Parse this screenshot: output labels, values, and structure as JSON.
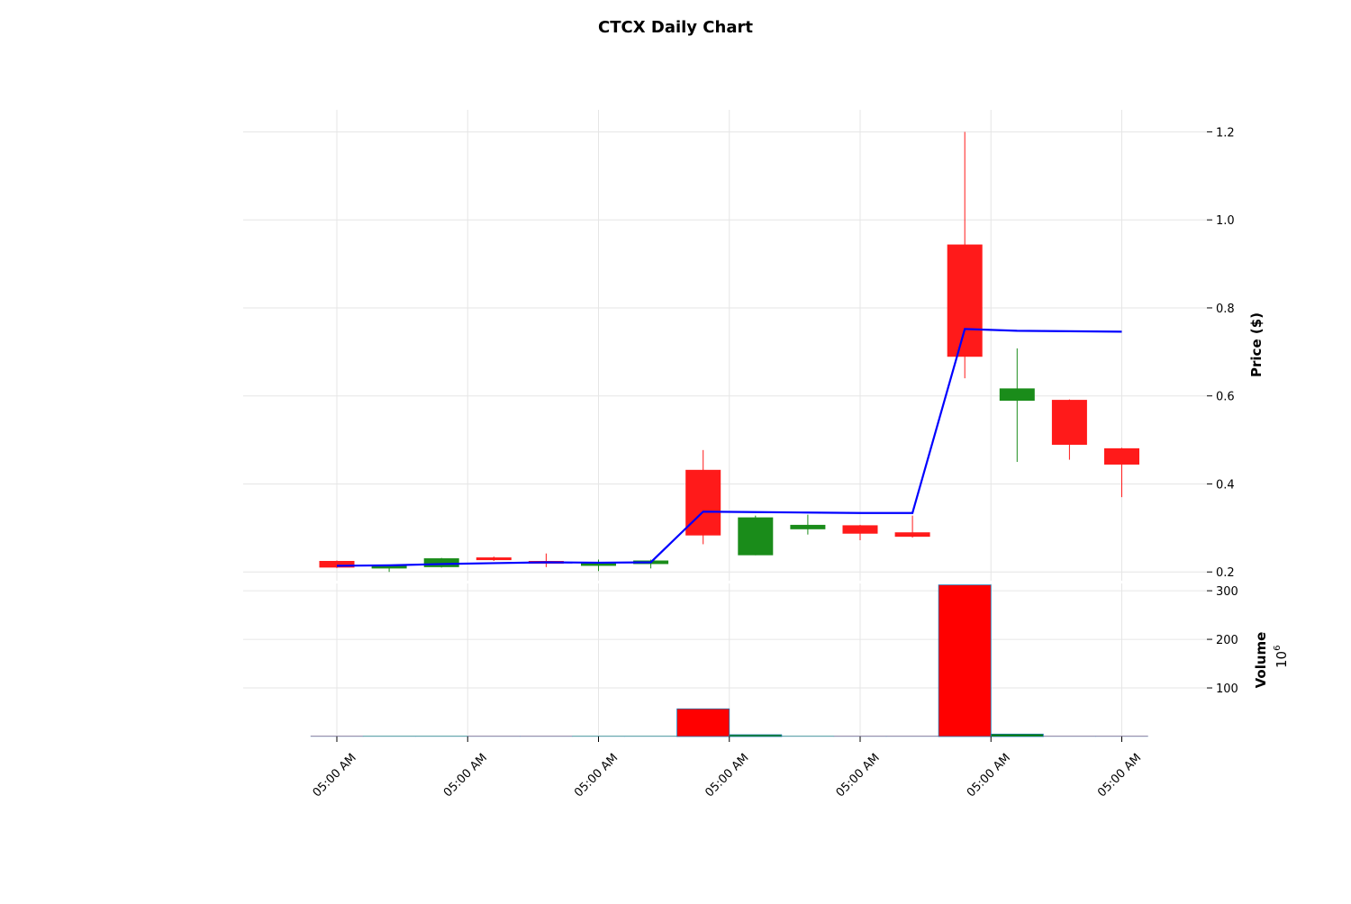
{
  "chart_data": {
    "type": "candlestick",
    "title": "CTCX Daily Chart",
    "price_axis": {
      "label": "Price ($)",
      "ylim": [
        0.18,
        1.25
      ],
      "ticks": [
        "0.2",
        "0.4",
        "0.6",
        "0.8",
        "1.0",
        "1.2"
      ]
    },
    "volume_axis": {
      "label": "Volume",
      "scale_label": "10",
      "scale_exponent": "6",
      "ylim": [
        0,
        315
      ],
      "ticks": [
        "100",
        "200",
        "300"
      ]
    },
    "x_tick_labels": [
      "05:00 AM",
      "05:00 AM",
      "05:00 AM",
      "05:00 AM",
      "05:00 AM",
      "05:00 AM",
      "05:00 AM"
    ],
    "colors": {
      "up": "#1a8c1a",
      "down": "#ff1a1a",
      "volume_up": "#008000",
      "volume_down": "#ff0000",
      "moving_average": "#0000ff"
    },
    "candles": [
      {
        "index": 0,
        "open": 0.224,
        "high": 0.226,
        "low": 0.209,
        "close": 0.211
      },
      {
        "index": 1,
        "open": 0.211,
        "high": 0.214,
        "low": 0.2,
        "close": 0.213
      },
      {
        "index": 2,
        "open": 0.212,
        "high": 0.232,
        "low": 0.21,
        "close": 0.23
      },
      {
        "index": 3,
        "open": 0.232,
        "high": 0.235,
        "low": 0.225,
        "close": 0.229
      },
      {
        "index": 4,
        "open": 0.224,
        "high": 0.242,
        "low": 0.211,
        "close": 0.222
      },
      {
        "index": 5,
        "open": 0.215,
        "high": 0.228,
        "low": 0.202,
        "close": 0.219
      },
      {
        "index": 6,
        "open": 0.219,
        "high": 0.228,
        "low": 0.208,
        "close": 0.225
      },
      {
        "index": 7,
        "open": 0.431,
        "high": 0.477,
        "low": 0.263,
        "close": 0.284
      },
      {
        "index": 8,
        "open": 0.239,
        "high": 0.328,
        "low": 0.238,
        "close": 0.323
      },
      {
        "index": 9,
        "open": 0.298,
        "high": 0.33,
        "low": 0.285,
        "close": 0.306
      },
      {
        "index": 10,
        "open": 0.305,
        "high": 0.307,
        "low": 0.272,
        "close": 0.288
      },
      {
        "index": 11,
        "open": 0.289,
        "high": 0.328,
        "low": 0.278,
        "close": 0.281
      },
      {
        "index": 12,
        "open": 0.943,
        "high": 1.2,
        "low": 0.64,
        "close": 0.69
      },
      {
        "index": 13,
        "open": 0.59,
        "high": 0.708,
        "low": 0.45,
        "close": 0.616
      },
      {
        "index": 14,
        "open": 0.59,
        "high": 0.592,
        "low": 0.455,
        "close": 0.49
      },
      {
        "index": 15,
        "open": 0.48,
        "high": 0.482,
        "low": 0.37,
        "close": 0.445
      }
    ],
    "moving_average": [
      {
        "index": 0,
        "value": 0.214
      },
      {
        "index": 1,
        "value": 0.215
      },
      {
        "index": 2,
        "value": 0.218
      },
      {
        "index": 3,
        "value": 0.22
      },
      {
        "index": 4,
        "value": 0.222
      },
      {
        "index": 5,
        "value": 0.221
      },
      {
        "index": 6,
        "value": 0.222
      },
      {
        "index": 7,
        "value": 0.337
      },
      {
        "index": 8,
        "value": 0.336
      },
      {
        "index": 9,
        "value": 0.335
      },
      {
        "index": 10,
        "value": 0.334
      },
      {
        "index": 11,
        "value": 0.334
      },
      {
        "index": 12,
        "value": 0.752
      },
      {
        "index": 13,
        "value": 0.748
      },
      {
        "index": 14,
        "value": 0.747
      },
      {
        "index": 15,
        "value": 0.746
      }
    ],
    "volume": [
      {
        "index": 0,
        "value": 0,
        "direction": "down"
      },
      {
        "index": 1,
        "value": 0,
        "direction": "up"
      },
      {
        "index": 2,
        "value": 0,
        "direction": "up"
      },
      {
        "index": 3,
        "value": 0,
        "direction": "down"
      },
      {
        "index": 4,
        "value": 0,
        "direction": "down"
      },
      {
        "index": 5,
        "value": 0,
        "direction": "up"
      },
      {
        "index": 6,
        "value": 0,
        "direction": "up"
      },
      {
        "index": 7,
        "value": 57,
        "direction": "down"
      },
      {
        "index": 8,
        "value": 1,
        "direction": "up"
      },
      {
        "index": 9,
        "value": 0,
        "direction": "up"
      },
      {
        "index": 10,
        "value": 0,
        "direction": "down"
      },
      {
        "index": 11,
        "value": 0,
        "direction": "down"
      },
      {
        "index": 12,
        "value": 312,
        "direction": "down"
      },
      {
        "index": 13,
        "value": 5,
        "direction": "up"
      },
      {
        "index": 14,
        "value": 0,
        "direction": "down"
      },
      {
        "index": 15,
        "value": 0,
        "direction": "down"
      }
    ]
  }
}
